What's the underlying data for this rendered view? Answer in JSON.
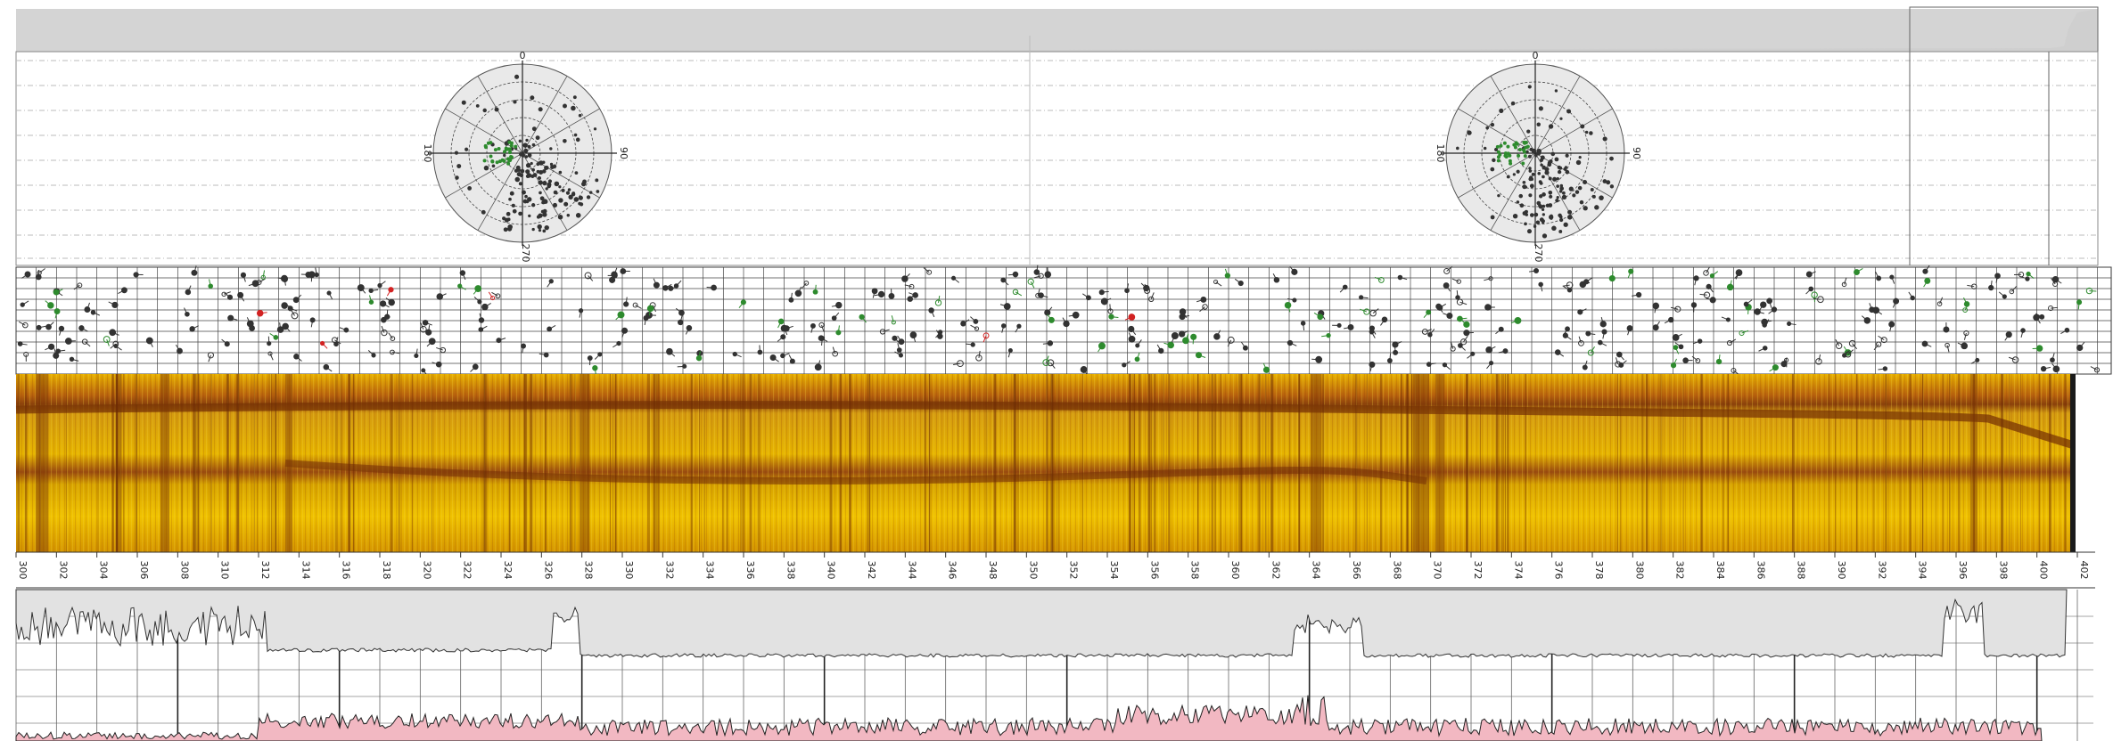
{
  "depth_axis": {
    "ticks": [
      "300",
      "302",
      "304",
      "306",
      "308",
      "310",
      "312",
      "314",
      "316",
      "318",
      "320",
      "322",
      "324",
      "326",
      "328",
      "330",
      "332",
      "334",
      "336",
      "338",
      "340",
      "342",
      "344",
      "346",
      "348",
      "350",
      "352",
      "354",
      "356",
      "358",
      "360",
      "362",
      "364",
      "366",
      "368",
      "370",
      "372",
      "374",
      "376",
      "378",
      "380",
      "382",
      "384",
      "386",
      "388",
      "390",
      "392",
      "394",
      "396",
      "398",
      "400",
      "402"
    ]
  },
  "stereonets": [
    {
      "labels": {
        "top": "0",
        "right": "90",
        "bottom": "270",
        "left": "180"
      }
    },
    {
      "labels": {
        "top": "0",
        "right": "90",
        "bottom": "270",
        "left": "180"
      }
    }
  ],
  "colors": {
    "top_band": "#d4d4d4",
    "image_base": "#e8b300",
    "image_dark": "#7a3d0c",
    "log_fill_upper": "#e2e2e2",
    "log_fill_lower": "#f2b8c2",
    "tadpole_dark": "#333333",
    "tadpole_green": "#2e8b2e",
    "tadpole_red": "#d22222"
  }
}
